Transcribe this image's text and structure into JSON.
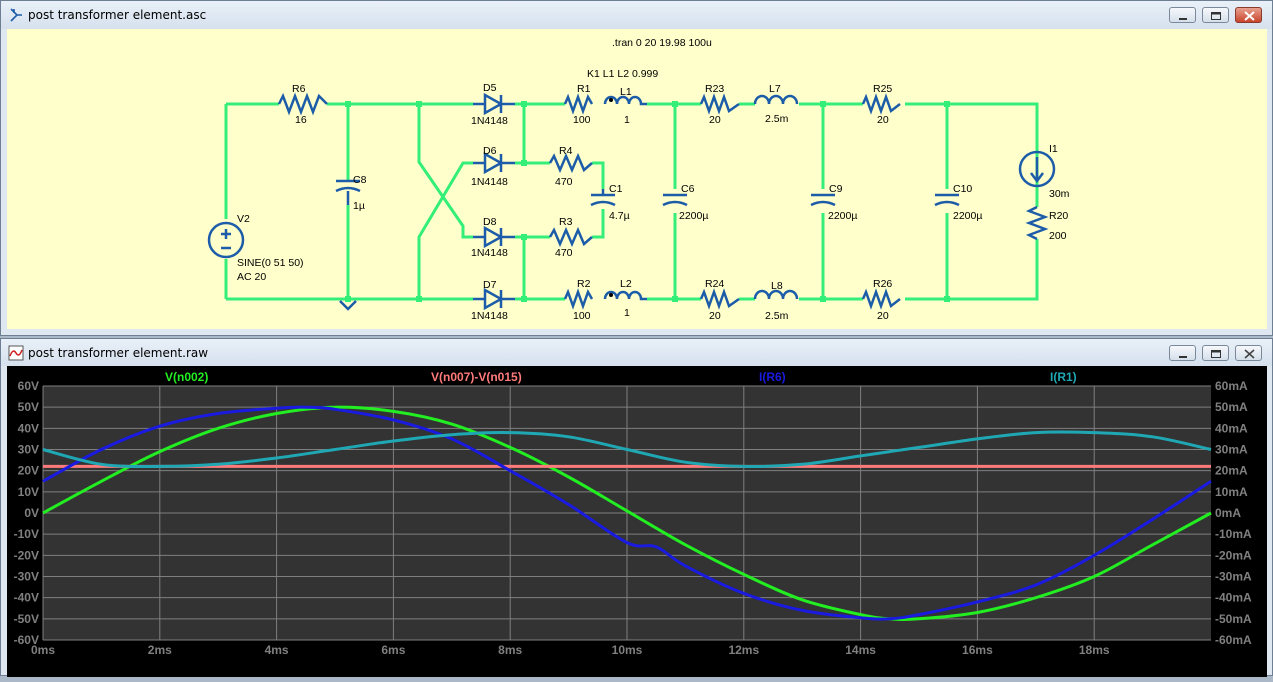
{
  "schematic_window": {
    "title": "post transformer element.asc",
    "icon": "schematic-icon",
    "directive_tran": ".tran 0 20 19.98 100u",
    "directive_coupling": "K1 L1 L2 0.999",
    "components": {
      "R6": {
        "name": "R6",
        "value": "16"
      },
      "C8": {
        "name": "C8",
        "value": "1µ"
      },
      "V2": {
        "name": "V2",
        "value": "SINE(0 51 50)",
        "ac": "AC 20"
      },
      "D5": {
        "name": "D5",
        "value": "1N4148"
      },
      "D6": {
        "name": "D6",
        "value": "1N4148"
      },
      "D8": {
        "name": "D8",
        "value": "1N4148"
      },
      "D7": {
        "name": "D7",
        "value": "1N4148"
      },
      "R1": {
        "name": "R1",
        "value": "100"
      },
      "L1": {
        "name": "L1",
        "value": "1"
      },
      "R4": {
        "name": "R4",
        "value": "470"
      },
      "R3": {
        "name": "R3",
        "value": "470"
      },
      "C1": {
        "name": "C1",
        "value": "4.7µ"
      },
      "R2": {
        "name": "R2",
        "value": "100"
      },
      "L2": {
        "name": "L2",
        "value": "1"
      },
      "C6": {
        "name": "C6",
        "value": "2200µ"
      },
      "R23": {
        "name": "R23",
        "value": "20"
      },
      "L7": {
        "name": "L7",
        "value": "2.5m"
      },
      "R24": {
        "name": "R24",
        "value": "20"
      },
      "L8": {
        "name": "L8",
        "value": "2.5m"
      },
      "C9": {
        "name": "C9",
        "value": "2200µ"
      },
      "R25": {
        "name": "R25",
        "value": "20"
      },
      "R26": {
        "name": "R26",
        "value": "20"
      },
      "C10": {
        "name": "C10",
        "value": "2200µ"
      },
      "I1": {
        "name": "I1",
        "value": "30m"
      },
      "R20": {
        "name": "R20",
        "value": "200"
      }
    },
    "colors": {
      "background": "#ffffcc",
      "wire": "#33ee77",
      "symbol": "#1c5ca8",
      "text": "#000000"
    }
  },
  "plot_window": {
    "title": "post transformer element.raw",
    "icon": "waveform-icon",
    "traces": [
      {
        "label": "V(n002)",
        "color": "#22ee22"
      },
      {
        "label": "V(n007)-V(n015)",
        "color": "#ff7b7b"
      },
      {
        "label": "I(R6)",
        "color": "#1a1ae0"
      },
      {
        "label": "I(R1)",
        "color": "#1fa8b4"
      }
    ],
    "colors": {
      "background": "#000000",
      "plot_area": "#333333",
      "grid": "#7f7f7f",
      "axis_text": "#808080"
    }
  },
  "chart_data": {
    "type": "line",
    "x_unit": "ms",
    "x_ticks": [
      "0ms",
      "2ms",
      "4ms",
      "6ms",
      "8ms",
      "10ms",
      "12ms",
      "14ms",
      "16ms",
      "18ms"
    ],
    "y_ticks_left": [
      "60V",
      "50V",
      "40V",
      "30V",
      "20V",
      "10V",
      "0V",
      "-10V",
      "-20V",
      "-30V",
      "-40V",
      "-50V",
      "-60V"
    ],
    "y_ticks_right": [
      "60mA",
      "50mA",
      "40mA",
      "30mA",
      "20mA",
      "10mA",
      "0mA",
      "-10mA",
      "-20mA",
      "-30mA",
      "-40mA",
      "-50mA",
      "-60mA"
    ],
    "xlim": [
      0,
      20
    ],
    "ylim_left": [
      -60,
      60
    ],
    "ylim_right": [
      -60,
      60
    ],
    "grid": true,
    "series": [
      {
        "name": "V(n002)",
        "axis": "left",
        "x": [
          0,
          1,
          2,
          3,
          4,
          5,
          6,
          7,
          8,
          9,
          10,
          11,
          12,
          13,
          14,
          14.5,
          15,
          16,
          17,
          18,
          19,
          20
        ],
        "y": [
          0,
          15,
          29,
          40,
          47,
          50,
          48,
          42,
          31,
          17,
          1,
          -15,
          -29,
          -41,
          -48,
          -50,
          -50,
          -47,
          -40,
          -30,
          -15,
          0
        ]
      },
      {
        "name": "V(n007)-V(n015)",
        "axis": "left",
        "x": [
          0,
          20
        ],
        "y": [
          22,
          22
        ]
      },
      {
        "name": "I(R6)",
        "axis": "right",
        "x": [
          0,
          1,
          2,
          3,
          4,
          4.5,
          5,
          6,
          7,
          8,
          9,
          10,
          10.5,
          11,
          12,
          13,
          14,
          14.5,
          15,
          16,
          17,
          18,
          19,
          20
        ],
        "y": [
          15,
          30,
          41,
          47,
          49.5,
          50,
          49,
          44,
          35,
          20,
          4,
          -14,
          -16,
          -25,
          -38,
          -46,
          -49.5,
          -50,
          -48,
          -42,
          -34,
          -20,
          -3,
          15
        ]
      },
      {
        "name": "I(R1)",
        "axis": "right",
        "x": [
          0,
          1,
          2,
          3,
          4,
          5,
          6,
          7,
          8,
          9,
          10,
          11,
          12,
          13,
          14,
          15,
          16,
          17,
          18,
          19,
          20
        ],
        "y": [
          30,
          23,
          22,
          23,
          26,
          30,
          34,
          37,
          38,
          36,
          30,
          24,
          22,
          23,
          27,
          31,
          35,
          38,
          38,
          36,
          30
        ]
      }
    ]
  }
}
